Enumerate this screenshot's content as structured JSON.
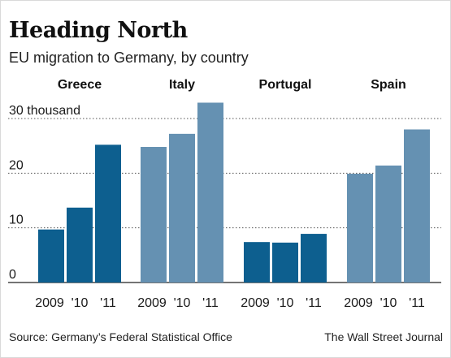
{
  "header": {
    "title": "Heading North",
    "subtitle": "EU migration to Germany,  by country"
  },
  "footer": {
    "source": "Source: Germany’s Federal Statistical Office",
    "credit": "The Wall Street Journal"
  },
  "chart_data": {
    "type": "bar",
    "title": "Heading North",
    "subtitle": "EU migration to Germany,  by country",
    "unit_label": "30 thousand",
    "ylim": [
      0,
      35
    ],
    "yticks": [
      0,
      10,
      20,
      30
    ],
    "ytick_labels": [
      "0",
      "10",
      "20",
      "30 thousand"
    ],
    "grid": true,
    "categories": [
      "2009",
      "'10",
      "'11"
    ],
    "groups": [
      {
        "name": "Greece",
        "color": "#0d5f8f",
        "values": [
          9.7,
          13.7,
          25.2
        ]
      },
      {
        "name": "Italy",
        "color": "#6591b2",
        "values": [
          24.8,
          27.2,
          32.9
        ]
      },
      {
        "name": "Portugal",
        "color": "#0d5f8f",
        "values": [
          7.4,
          7.3,
          8.9
        ]
      },
      {
        "name": "Spain",
        "color": "#6591b2",
        "values": [
          19.9,
          21.4,
          28.0
        ]
      }
    ]
  }
}
